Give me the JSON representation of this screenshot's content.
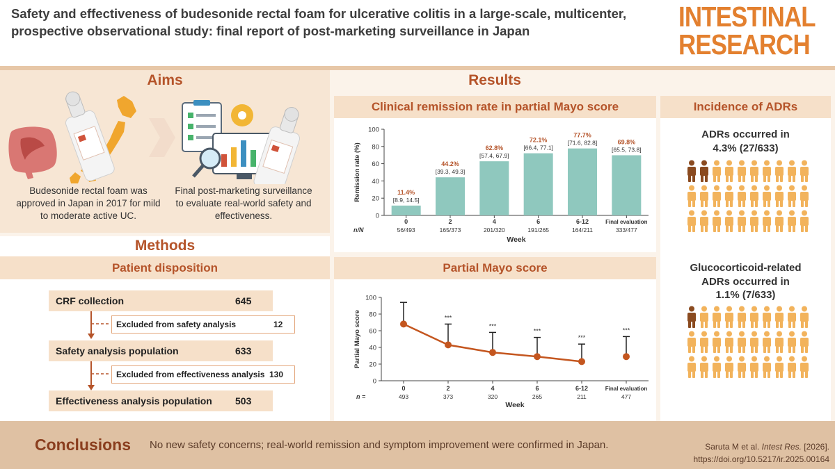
{
  "header": {
    "title": "Safety and effectiveness of budesonide rectal foam for ulcerative colitis in a large-scale, multicenter, prospective observational study: final report of post-marketing surveillance in Japan",
    "logo_line1": "INTESTINAL",
    "logo_line2": "RESEARCH"
  },
  "aims": {
    "title": "Aims",
    "text1": "Budesonide rectal foam was approved in Japan in 2017 for mild to moderate active UC.",
    "text2": "Final post-marketing surveillance to evaluate real-world safety and effectiveness."
  },
  "methods": {
    "title": "Methods",
    "band": "Patient disposition",
    "crf": {
      "label": "CRF collection",
      "value": "645"
    },
    "excl_safety": {
      "label": "Excluded from safety analysis",
      "value": "12"
    },
    "safety": {
      "label": "Safety analysis population",
      "value": "633"
    },
    "excl_eff": {
      "label": "Excluded from effectiveness analysis",
      "value": "130"
    },
    "eff": {
      "label": "Effectiveness analysis population",
      "value": "503"
    }
  },
  "results": {
    "title": "Results",
    "remission_band": "Clinical remission rate in partial Mayo score",
    "mayo_band": "Partial Mayo score"
  },
  "adr": {
    "band": "Incidence of ADRs",
    "line1a": "ADRs occurred in",
    "line1b": "4.3% (27/633)",
    "line2a": "Glucocorticoid-related",
    "line2b": "ADRs occurred in",
    "line2c": "1.1% (7/633)",
    "grid1": {
      "total": 30,
      "highlighted": 2
    },
    "grid2": {
      "total": 30,
      "highlighted": 1
    },
    "person_color": "#f2b35c",
    "person_highlight_color": "#8a4a1f"
  },
  "chart_data": [
    {
      "type": "bar",
      "ylabel": "Remission rate (%)",
      "xlabel": "Week",
      "ylim": [
        0,
        100
      ],
      "yticks": [
        0,
        20,
        40,
        60,
        80,
        100
      ],
      "categories": [
        "0",
        "2",
        "4",
        "6",
        "6-12",
        "Final evaluation"
      ],
      "values": [
        11.4,
        44.2,
        62.8,
        72.1,
        77.7,
        69.8
      ],
      "value_labels": [
        "11.4%",
        "44.2%",
        "62.8%",
        "72.1%",
        "77.7%",
        "69.8%"
      ],
      "ci_labels": [
        "[8.9, 14.5]",
        "[39.3, 49.3]",
        "[57.4, 67.9]",
        "[66.4, 77.1]",
        "[71.6, 82.8]",
        "[65.5, 73.8]"
      ],
      "n_label": "n/N",
      "n_values": [
        "56/493",
        "165/373",
        "201/320",
        "191/265",
        "164/211",
        "333/477"
      ],
      "bar_color": "#8fc8be"
    },
    {
      "type": "line",
      "ylabel": "Partial Mayo score",
      "xlabel": "Week",
      "ylim": [
        0,
        100
      ],
      "yticks": [
        0,
        20,
        40,
        60,
        80,
        100
      ],
      "categories": [
        "0",
        "2",
        "4",
        "6",
        "6-12",
        "Final evaluation"
      ],
      "values": [
        68,
        43,
        34,
        29,
        23,
        29
      ],
      "error_upper": [
        94,
        68,
        58,
        52,
        44,
        53
      ],
      "significance": [
        "",
        "***",
        "***",
        "***",
        "***",
        "***"
      ],
      "n_label": "n =",
      "n_values": [
        "493",
        "373",
        "320",
        "265",
        "211",
        "477"
      ],
      "line_color": "#c4561f"
    }
  ],
  "conclusions": {
    "title": "Conclusions",
    "text": "No new safety concerns; real-world remission and symptom improvement were confirmed in Japan.",
    "cite_author": "Saruta M et al. ",
    "cite_journal": "Intest Res.",
    "cite_year": " [2026].",
    "cite_doi": "https://doi.org/10.5217/ir.2025.00164"
  }
}
